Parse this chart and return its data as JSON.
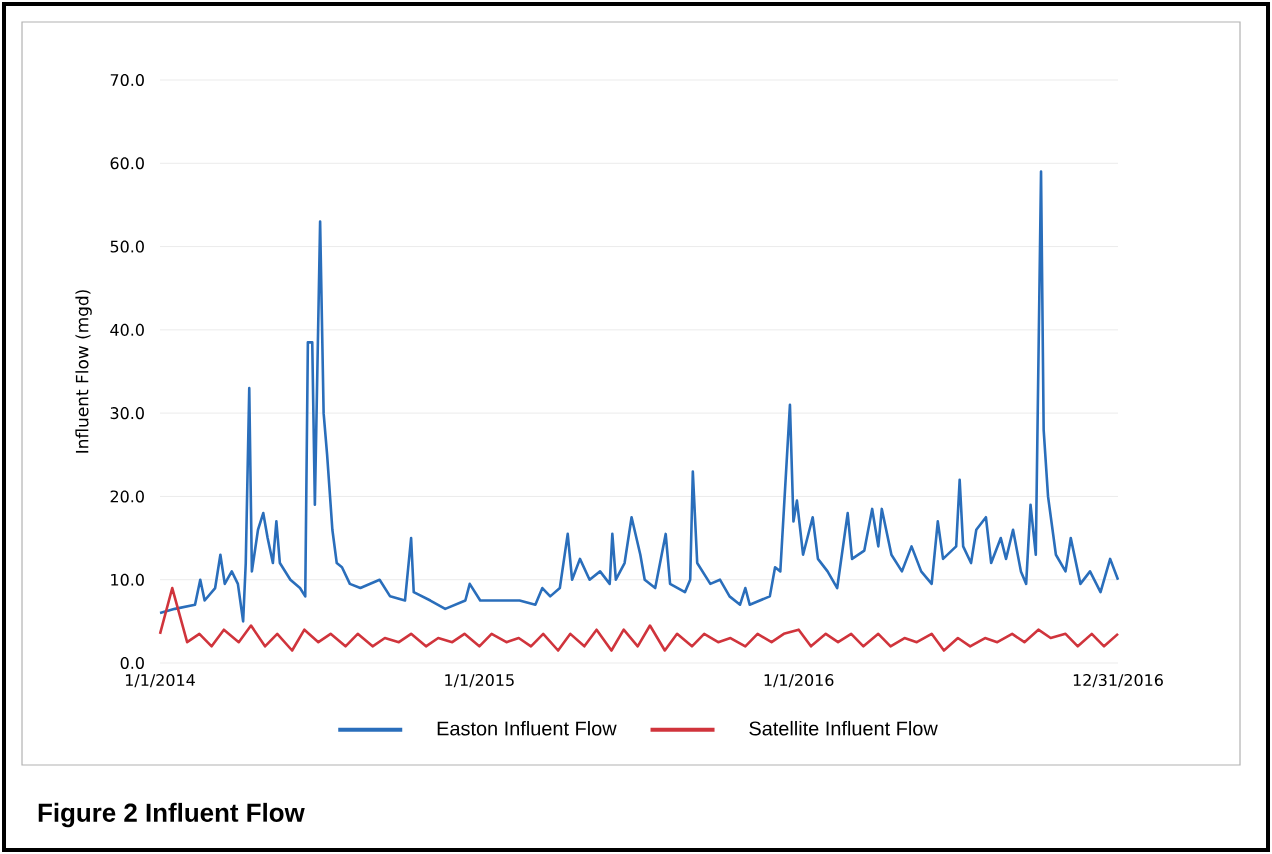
{
  "chart_data": {
    "type": "line",
    "title": "Figure 2  Influent Flow",
    "ylabel": "Influent Flow (mgd)",
    "xlim": [
      "2014-01-01",
      "2016-12-31"
    ],
    "xticks": [
      {
        "value": "2014-01-01",
        "label": "1/1/2014"
      },
      {
        "value": "2015-01-01",
        "label": "1/1/2015"
      },
      {
        "value": "2016-01-01",
        "label": "1/1/2016"
      },
      {
        "value": "2016-12-31",
        "label": "12/31/2016"
      }
    ],
    "ylim": [
      0,
      70
    ],
    "yticks": [
      {
        "value": 0,
        "label": "0.0"
      },
      {
        "value": 10,
        "label": "10.0"
      },
      {
        "value": 20,
        "label": "20.0"
      },
      {
        "value": 30,
        "label": "30.0"
      },
      {
        "value": 40,
        "label": "40.0"
      },
      {
        "value": 50,
        "label": "50.0"
      },
      {
        "value": 60,
        "label": "60.0"
      },
      {
        "value": 70,
        "label": "70.0"
      }
    ],
    "grid": "y",
    "legend": "bottom",
    "marker": "none",
    "line_style": "solid",
    "series": [
      {
        "name": "Easton Influent Flow",
        "color": "#2a6ebb",
        "x": [
          "2014-01-01",
          "2014-01-18",
          "2014-02-10",
          "2014-02-16",
          "2014-02-21",
          "2014-03-05",
          "2014-03-11",
          "2014-03-16",
          "2014-03-24",
          "2014-03-31",
          "2014-04-06",
          "2014-04-09",
          "2014-04-13",
          "2014-04-16",
          "2014-04-23",
          "2014-04-29",
          "2014-05-04",
          "2014-05-10",
          "2014-05-14",
          "2014-05-18",
          "2014-05-30",
          "2014-06-10",
          "2014-06-16",
          "2014-06-19",
          "2014-06-24",
          "2014-06-27",
          "2014-07-03",
          "2014-07-07",
          "2014-07-11",
          "2014-07-17",
          "2014-07-22",
          "2014-07-28",
          "2014-08-06",
          "2014-08-18",
          "2014-09-09",
          "2014-09-21",
          "2014-10-08",
          "2014-10-15",
          "2014-10-18",
          "2014-11-06",
          "2014-11-23",
          "2014-12-16",
          "2014-12-21",
          "2015-01-02",
          "2015-01-25",
          "2015-02-16",
          "2015-03-06",
          "2015-03-14",
          "2015-03-23",
          "2015-04-03",
          "2015-04-12",
          "2015-04-17",
          "2015-04-26",
          "2015-05-07",
          "2015-05-19",
          "2015-05-30",
          "2015-06-02",
          "2015-06-06",
          "2015-06-16",
          "2015-06-24",
          "2015-07-04",
          "2015-07-09",
          "2015-07-21",
          "2015-08-02",
          "2015-08-07",
          "2015-08-24",
          "2015-08-30",
          "2015-09-02",
          "2015-09-07",
          "2015-09-22",
          "2015-10-03",
          "2015-10-14",
          "2015-10-26",
          "2015-11-01",
          "2015-11-06",
          "2015-11-29",
          "2015-12-05",
          "2015-12-11",
          "2015-12-22",
          "2015-12-26",
          "2015-12-30",
          "2016-01-06",
          "2016-01-17",
          "2016-01-23",
          "2016-02-03",
          "2016-02-14",
          "2016-02-26",
          "2016-03-02",
          "2016-03-16",
          "2016-03-25",
          "2016-04-01",
          "2016-04-05",
          "2016-04-16",
          "2016-04-28",
          "2016-05-09",
          "2016-05-20",
          "2016-06-01",
          "2016-06-08",
          "2016-06-14",
          "2016-06-29",
          "2016-07-03",
          "2016-07-07",
          "2016-07-16",
          "2016-07-22",
          "2016-08-02",
          "2016-08-08",
          "2016-08-19",
          "2016-08-25",
          "2016-09-02",
          "2016-09-11",
          "2016-09-17",
          "2016-09-22",
          "2016-09-28",
          "2016-10-04",
          "2016-10-07",
          "2016-10-12",
          "2016-10-21",
          "2016-11-01",
          "2016-11-07",
          "2016-11-18",
          "2016-11-29",
          "2016-12-11",
          "2016-12-22",
          "2016-12-31"
        ],
        "values": [
          6.0,
          6.5,
          7.0,
          10.0,
          7.5,
          9.0,
          13.0,
          9.5,
          11.0,
          9.5,
          5.0,
          12.0,
          33.0,
          11.0,
          16.0,
          18.0,
          15.0,
          12.0,
          17.0,
          12.0,
          10.0,
          9.0,
          8.0,
          38.5,
          38.5,
          19.0,
          53.0,
          30.0,
          25.0,
          16.0,
          12.0,
          11.5,
          9.5,
          9.0,
          10.0,
          8.0,
          7.5,
          15.0,
          8.5,
          7.5,
          6.5,
          7.5,
          9.5,
          7.5,
          7.5,
          7.5,
          7.0,
          9.0,
          8.0,
          9.0,
          15.5,
          10.0,
          12.5,
          10.0,
          11.0,
          9.5,
          15.5,
          10.0,
          12.0,
          17.5,
          13.0,
          10.0,
          9.0,
          15.5,
          9.5,
          8.5,
          10.0,
          23.0,
          12.0,
          9.5,
          10.0,
          8.0,
          7.0,
          9.0,
          7.0,
          8.0,
          11.5,
          11.0,
          31.0,
          17.0,
          19.5,
          13.0,
          17.5,
          12.5,
          11.0,
          9.0,
          18.0,
          12.5,
          13.5,
          18.5,
          14.0,
          18.5,
          13.0,
          11.0,
          14.0,
          11.0,
          9.5,
          17.0,
          12.5,
          14.0,
          22.0,
          14.0,
          12.0,
          16.0,
          17.5,
          12.0,
          15.0,
          12.5,
          16.0,
          11.0,
          9.5,
          19.0,
          13.0,
          59.0,
          28.0,
          20.0,
          13.0,
          11.0,
          15.0,
          9.5,
          11.0,
          8.5,
          12.5,
          10.0
        ]
      },
      {
        "name": "Satellite Influent Flow",
        "color": "#d0343c",
        "x": [
          "2014-01-01",
          "2014-01-15",
          "2014-02-01",
          "2014-02-15",
          "2014-03-01",
          "2014-03-15",
          "2014-04-01",
          "2014-04-15",
          "2014-05-01",
          "2014-05-15",
          "2014-06-01",
          "2014-06-15",
          "2014-07-01",
          "2014-07-15",
          "2014-08-01",
          "2014-08-15",
          "2014-09-01",
          "2014-09-15",
          "2014-10-01",
          "2014-10-15",
          "2014-11-01",
          "2014-11-15",
          "2014-12-01",
          "2014-12-15",
          "2015-01-01",
          "2015-01-15",
          "2015-02-01",
          "2015-02-15",
          "2015-03-01",
          "2015-03-15",
          "2015-04-01",
          "2015-04-15",
          "2015-05-01",
          "2015-05-15",
          "2015-06-01",
          "2015-06-15",
          "2015-07-01",
          "2015-07-15",
          "2015-08-01",
          "2015-08-15",
          "2015-09-01",
          "2015-09-15",
          "2015-10-01",
          "2015-10-15",
          "2015-11-01",
          "2015-11-15",
          "2015-12-01",
          "2015-12-15",
          "2016-01-01",
          "2016-01-15",
          "2016-02-01",
          "2016-02-15",
          "2016-03-01",
          "2016-03-15",
          "2016-04-01",
          "2016-04-15",
          "2016-05-01",
          "2016-05-15",
          "2016-06-01",
          "2016-06-15",
          "2016-07-01",
          "2016-07-15",
          "2016-08-01",
          "2016-08-15",
          "2016-09-01",
          "2016-09-15",
          "2016-10-01",
          "2016-10-15",
          "2016-11-01",
          "2016-11-15",
          "2016-12-01",
          "2016-12-15",
          "2016-12-31"
        ],
        "values": [
          3.5,
          9.0,
          2.5,
          3.5,
          2.0,
          4.0,
          2.5,
          4.5,
          2.0,
          3.5,
          1.5,
          4.0,
          2.5,
          3.5,
          2.0,
          3.5,
          2.0,
          3.0,
          2.5,
          3.5,
          2.0,
          3.0,
          2.5,
          3.5,
          2.0,
          3.5,
          2.5,
          3.0,
          2.0,
          3.5,
          1.5,
          3.5,
          2.0,
          4.0,
          1.5,
          4.0,
          2.0,
          4.5,
          1.5,
          3.5,
          2.0,
          3.5,
          2.5,
          3.0,
          2.0,
          3.5,
          2.5,
          3.5,
          4.0,
          2.0,
          3.5,
          2.5,
          3.5,
          2.0,
          3.5,
          2.0,
          3.0,
          2.5,
          3.5,
          1.5,
          3.0,
          2.0,
          3.0,
          2.5,
          3.5,
          2.5,
          4.0,
          3.0,
          3.5,
          2.0,
          3.5,
          2.0,
          3.5
        ]
      }
    ]
  }
}
